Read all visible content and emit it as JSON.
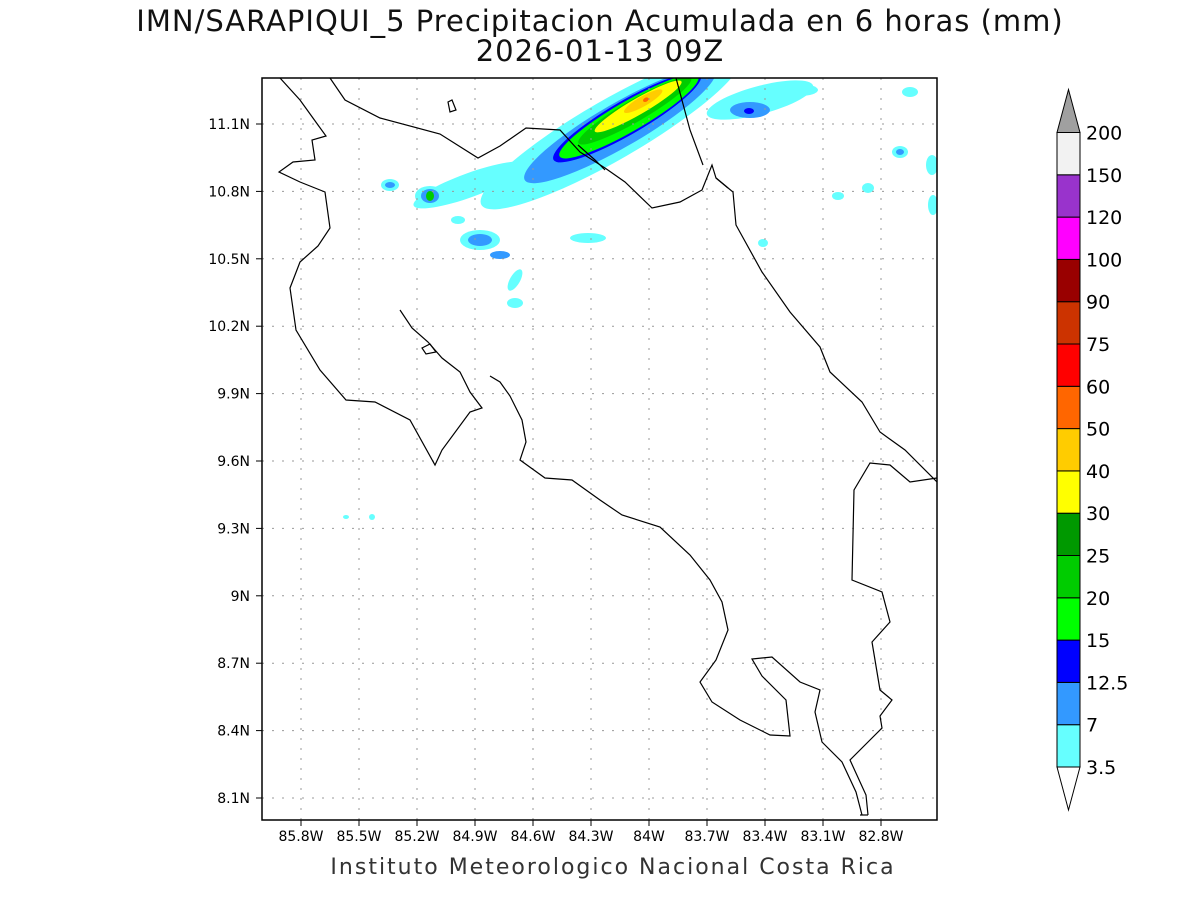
{
  "title": "IMN/SARAPIQUI_5 Precipitacion Acumulada en 6 horas (mm)",
  "subtitle": "2026-01-13 09Z",
  "credit": "Instituto Meteorologico Nacional Costa Rica",
  "map": {
    "lat_ticks": [
      "11.1N",
      "10.8N",
      "10.5N",
      "10.2N",
      "9.9N",
      "9.6N",
      "9.3N",
      "9N",
      "8.7N",
      "8.4N",
      "8.1N"
    ],
    "lon_ticks": [
      "85.8W",
      "85.5W",
      "85.2W",
      "84.9W",
      "84.6W",
      "84.3W",
      "84W",
      "83.7W",
      "83.4W",
      "83.1W",
      "82.8W"
    ]
  },
  "colorbar": {
    "labels": [
      "3.5",
      "7",
      "12.5",
      "15",
      "20",
      "25",
      "30",
      "40",
      "50",
      "60",
      "75",
      "90",
      "100",
      "120",
      "150",
      "200"
    ],
    "colors": [
      "#66ffff",
      "#3399ff",
      "#0000ff",
      "#00ff00",
      "#00cc00",
      "#009900",
      "#ffff00",
      "#ffcc00",
      "#ff6600",
      "#ff0000",
      "#cc3300",
      "#990000",
      "#ff00ff",
      "#9933cc",
      "#f2f2f2"
    ],
    "below_color": "#ffffff",
    "above_color": "#a0a0a0"
  }
}
